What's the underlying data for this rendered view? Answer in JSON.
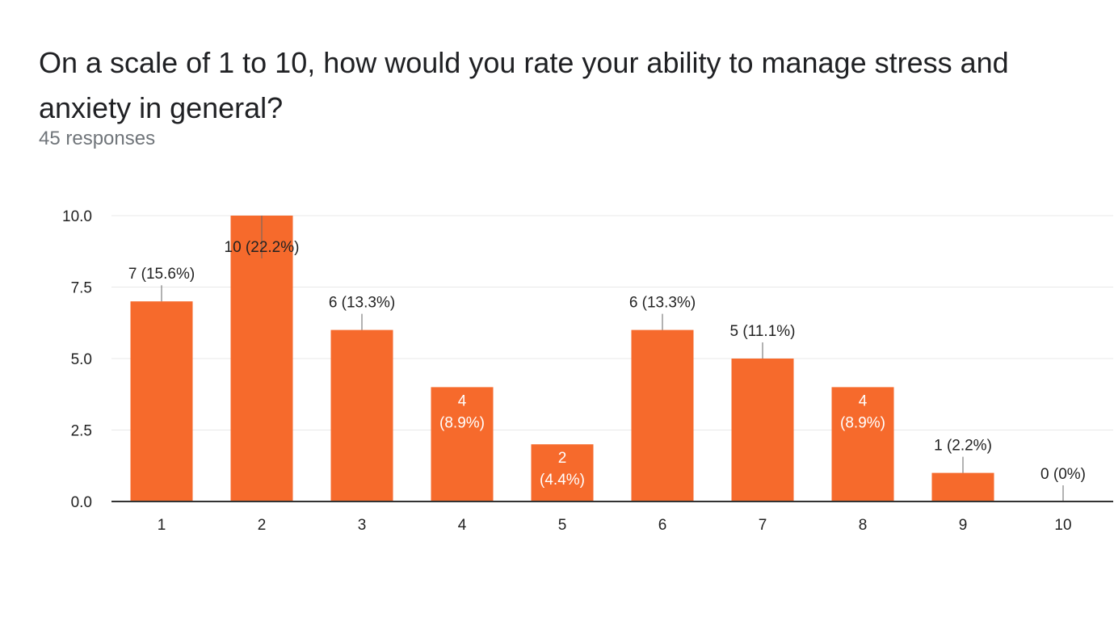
{
  "question": {
    "title": "On a scale of 1 to 10, how would you rate your ability to manage stress and anxiety in general?",
    "responses": "45 responses"
  },
  "colors": {
    "bar": "#f66a2c",
    "grid": "#e8e8e8",
    "axis": "#333333",
    "label": "#222222",
    "inside_label": "#ffffff"
  },
  "chart_data": {
    "type": "bar",
    "title": "",
    "xlabel": "",
    "ylabel": "",
    "categories": [
      "1",
      "2",
      "3",
      "4",
      "5",
      "6",
      "7",
      "8",
      "9",
      "10"
    ],
    "values": [
      7,
      10,
      6,
      4,
      2,
      6,
      5,
      4,
      1,
      0
    ],
    "labels": [
      "7 (15.6%)",
      "10 (22.2%)",
      "6 (13.3%)",
      "4 (8.9%)",
      "2 (4.4%)",
      "6 (13.3%)",
      "5 (11.1%)",
      "4 (8.9%)",
      "1 (2.2%)",
      "0 (0%)"
    ],
    "label_inside": [
      false,
      false,
      false,
      true,
      true,
      false,
      false,
      true,
      false,
      false
    ],
    "ylim": [
      0,
      10
    ],
    "yticks": [
      "0.0",
      "2.5",
      "5.0",
      "7.5",
      "10.0"
    ],
    "ytick_values": [
      0,
      2.5,
      5,
      7.5,
      10
    ],
    "grid": true
  }
}
